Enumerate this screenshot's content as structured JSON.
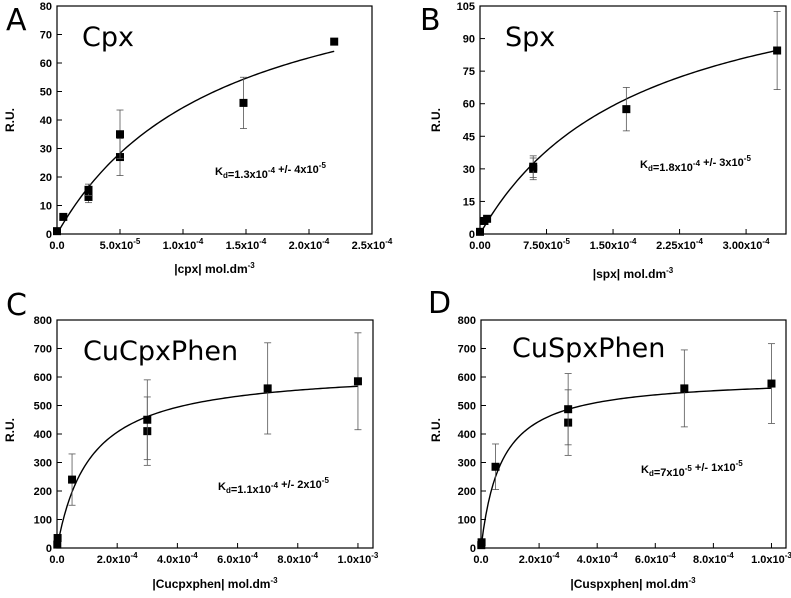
{
  "chart_data": [
    {
      "type": "scatter",
      "panel_letter": "A",
      "title": "Cpx",
      "xlabel": "|cpx| mol.dm-3",
      "ylabel": "R.U.",
      "xlim": [
        0,
        0.00025
      ],
      "ylim": [
        0,
        80
      ],
      "x_ticks": [
        "0.0",
        "5.0x10-5",
        "1.0x10-4",
        "1.5x10-4",
        "2.0x10-4",
        "2.5x10-4"
      ],
      "y_ticks": [
        "0",
        "10",
        "20",
        "30",
        "40",
        "50",
        "60",
        "70",
        "80"
      ],
      "annotation": "Kd=1.3x10-4 +/- 4x10-5",
      "series": [
        {
          "x": [
            0,
            5e-06,
            2.5e-05,
            2.5e-05,
            5e-05,
            5e-05,
            0.000148,
            0.00022
          ],
          "y": [
            1,
            6,
            13,
            15.5,
            27,
            35,
            46,
            67.5
          ],
          "error": [
            0,
            0,
            2,
            2,
            6.5,
            8.5,
            9,
            0
          ]
        }
      ],
      "fit_curve": {
        "model": "bmax*x/(kd+x)",
        "bmax": 102,
        "kd": 0.00013
      },
      "grid": false
    },
    {
      "type": "scatter",
      "panel_letter": "B",
      "title": "Spx",
      "xlabel": "|spx| mol.dm-3",
      "ylabel": "R.U.",
      "xlim": [
        0,
        0.000345
      ],
      "ylim": [
        0,
        105
      ],
      "x_ticks": [
        "0.00",
        "7.50x10-5",
        "1.50x10-4",
        "2.25x10-4",
        "3.00x10-4"
      ],
      "y_ticks": [
        "0",
        "15",
        "30",
        "45",
        "60",
        "75",
        "90",
        "105"
      ],
      "annotation": "Kd=1.8x10-4 +/- 3x10-5",
      "series": [
        {
          "x": [
            0,
            5e-06,
            8e-06,
            6e-05,
            6e-05,
            0.000165,
            0.000335
          ],
          "y": [
            1,
            6,
            7,
            30,
            31,
            57.5,
            84.5
          ],
          "error": [
            0,
            0,
            0,
            5,
            5,
            10,
            18
          ]
        }
      ],
      "fit_curve": {
        "model": "bmax*x/(kd+x)",
        "bmax": 130,
        "kd": 0.00018
      },
      "grid": false
    },
    {
      "type": "scatter",
      "panel_letter": "C",
      "title": "CuCpxPhen",
      "xlabel": "|Cucpxphen| mol.dm-3",
      "ylabel": "R.U.",
      "xlim": [
        0,
        0.00105
      ],
      "ylim": [
        0,
        800
      ],
      "x_ticks": [
        "0.0",
        "2.0x10-4",
        "4.0x10-4",
        "6.0x10-4",
        "8.0x10-4",
        "1.0x10-3"
      ],
      "y_ticks": [
        "0",
        "100",
        "200",
        "300",
        "400",
        "500",
        "600",
        "700",
        "800"
      ],
      "annotation": "Kd=1.1x10-4 +/- 2x10-5",
      "series": [
        {
          "x": [
            1e-06,
            2e-06,
            5e-05,
            0.0003,
            0.0003,
            0.0007,
            0.001
          ],
          "y": [
            12,
            35,
            240,
            410,
            450,
            560,
            585
          ],
          "error": [
            0,
            0,
            90,
            120,
            140,
            160,
            170
          ]
        }
      ],
      "fit_curve": {
        "model": "bmax*x/(kd+x)",
        "bmax": 630,
        "kd": 0.00011
      },
      "grid": false
    },
    {
      "type": "scatter",
      "panel_letter": "D",
      "title": "CuSpxPhen",
      "xlabel": "|Cuspxphen| mol.dm-3",
      "ylabel": "R.U.",
      "xlim": [
        0,
        0.00105
      ],
      "ylim": [
        0,
        800
      ],
      "x_ticks": [
        "0.0",
        "2.0x10-4",
        "4.0x10-4",
        "6.0x10-4",
        "8.0x10-4",
        "1.0x10-3"
      ],
      "y_ticks": [
        "0",
        "100",
        "200",
        "300",
        "400",
        "500",
        "600",
        "700",
        "800"
      ],
      "annotation": "Kd=7x10-5 +/- 1x10-5",
      "series": [
        {
          "x": [
            1e-06,
            2e-06,
            5e-05,
            0.0003,
            0.0003,
            0.0007,
            0.001
          ],
          "y": [
            10,
            20,
            285,
            440,
            487,
            560,
            577
          ],
          "error": [
            0,
            0,
            80,
            115,
            125,
            135,
            140
          ]
        }
      ],
      "fit_curve": {
        "model": "bmax*x/(kd+x)",
        "bmax": 600,
        "kd": 7e-05
      },
      "grid": false
    }
  ]
}
